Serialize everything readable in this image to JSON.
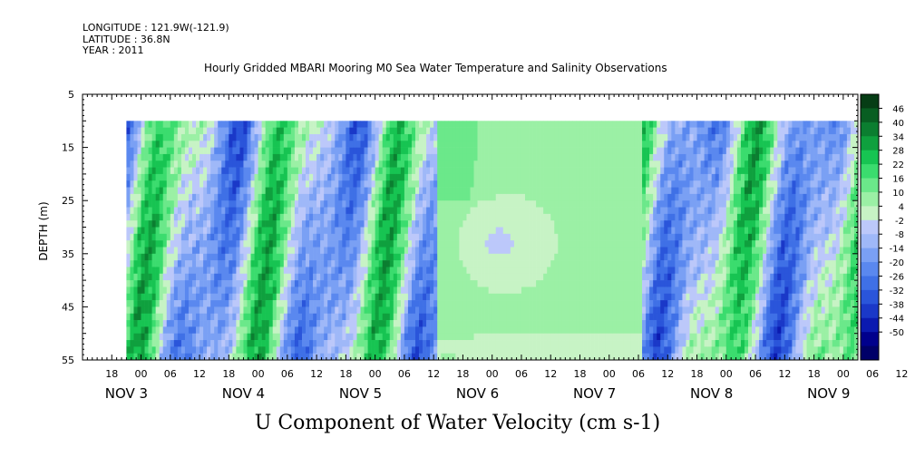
{
  "header": {
    "longitude": "LONGITUDE : 121.9W(-121.9)",
    "latitude": "LATITUDE : 36.8N",
    "year": "YEAR : 2011"
  },
  "chart_data": {
    "type": "heatmap",
    "title": "Hourly Gridded MBARI Mooring M0 Sea Water Temperature and Salinity Observations",
    "xlabel": "U Component of Water Velocity (cm s-1)",
    "ylabel": "DEPTH (m)",
    "ylim": [
      5,
      55
    ],
    "y_inverted": true,
    "y_ticks": [
      5,
      15,
      25,
      35,
      45,
      55
    ],
    "data_depth_range": [
      10,
      55
    ],
    "x_hour_labels": [
      "18",
      "00",
      "06",
      "12",
      "18",
      "00",
      "06",
      "12",
      "18",
      "00",
      "06",
      "12",
      "18",
      "00",
      "06",
      "12",
      "18",
      "00",
      "06",
      "12",
      "18",
      "00",
      "06",
      "12",
      "18",
      "00",
      "06",
      "12"
    ],
    "x_hour_start": "Nov 2 18:00",
    "x_hour_step": 6,
    "day_labels": [
      {
        "text": "NOV  3",
        "hour": 24
      },
      {
        "text": "NOV  4",
        "hour": 48
      },
      {
        "text": "NOV  5",
        "hour": 72
      },
      {
        "text": "NOV  6",
        "hour": 96
      },
      {
        "text": "NOV  7",
        "hour": 120
      },
      {
        "text": "NOV  8",
        "hour": 144
      },
      {
        "text": "NOV  9",
        "hour": 168
      }
    ],
    "colorbar": {
      "levels": [
        -50,
        -44,
        -38,
        -32,
        -26,
        -20,
        -14,
        -8,
        -2,
        4,
        10,
        16,
        22,
        28,
        34,
        40,
        46
      ],
      "labels": [
        "46",
        "40",
        "34",
        "28",
        "22",
        "16",
        "10",
        "4",
        "-2",
        "-8",
        "-14",
        "-20",
        "-26",
        "-32",
        "-38",
        "-44",
        "-50"
      ],
      "colors_low_to_high": [
        "#000068",
        "#00008c",
        "#0b1ab0",
        "#1a38c8",
        "#2a55da",
        "#3f70e6",
        "#5a88ef",
        "#7aa0f4",
        "#9fb8f8",
        "#bcc8fa",
        "#c7f3c5",
        "#9bf0a5",
        "#6be88a",
        "#3bdc6e",
        "#17c452",
        "#0fa03e",
        "#0b7e30",
        "#085e22",
        "#063d15"
      ],
      "colors": {
        "deep_blue": "#2a55da",
        "light_blue": "#9fb8f8",
        "light_green": "#9bf0a5",
        "bright_green": "#17c452"
      }
    },
    "structure": {
      "data_start_hour": 24,
      "data_end_hour": 174,
      "uniform_period_hours": [
        88,
        130
      ],
      "pattern_description_omitted": true
    }
  }
}
